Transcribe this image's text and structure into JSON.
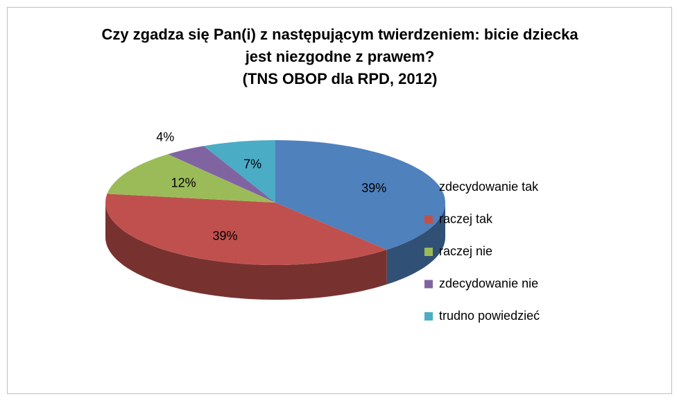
{
  "chart_data": {
    "type": "pie",
    "title": "Czy zgadza się Pan(i) z następującym twierdzeniem: bicie dziecka jest niezgodne z prawem?",
    "subtitle": "(TNS OBOP dla RPD, 2012)",
    "categories": [
      "zdecydowanie tak",
      "raczej tak",
      "raczej nie",
      "zdecydowanie nie",
      "trudno powiedzieć"
    ],
    "values": [
      39,
      39,
      12,
      4,
      7
    ],
    "value_labels": [
      "39%",
      "39%",
      "12%",
      "4%",
      "7%"
    ],
    "colors": [
      "#4f81bd",
      "#c0504d",
      "#9bbb59",
      "#8064a2",
      "#4bacc6"
    ],
    "legend": "right"
  }
}
